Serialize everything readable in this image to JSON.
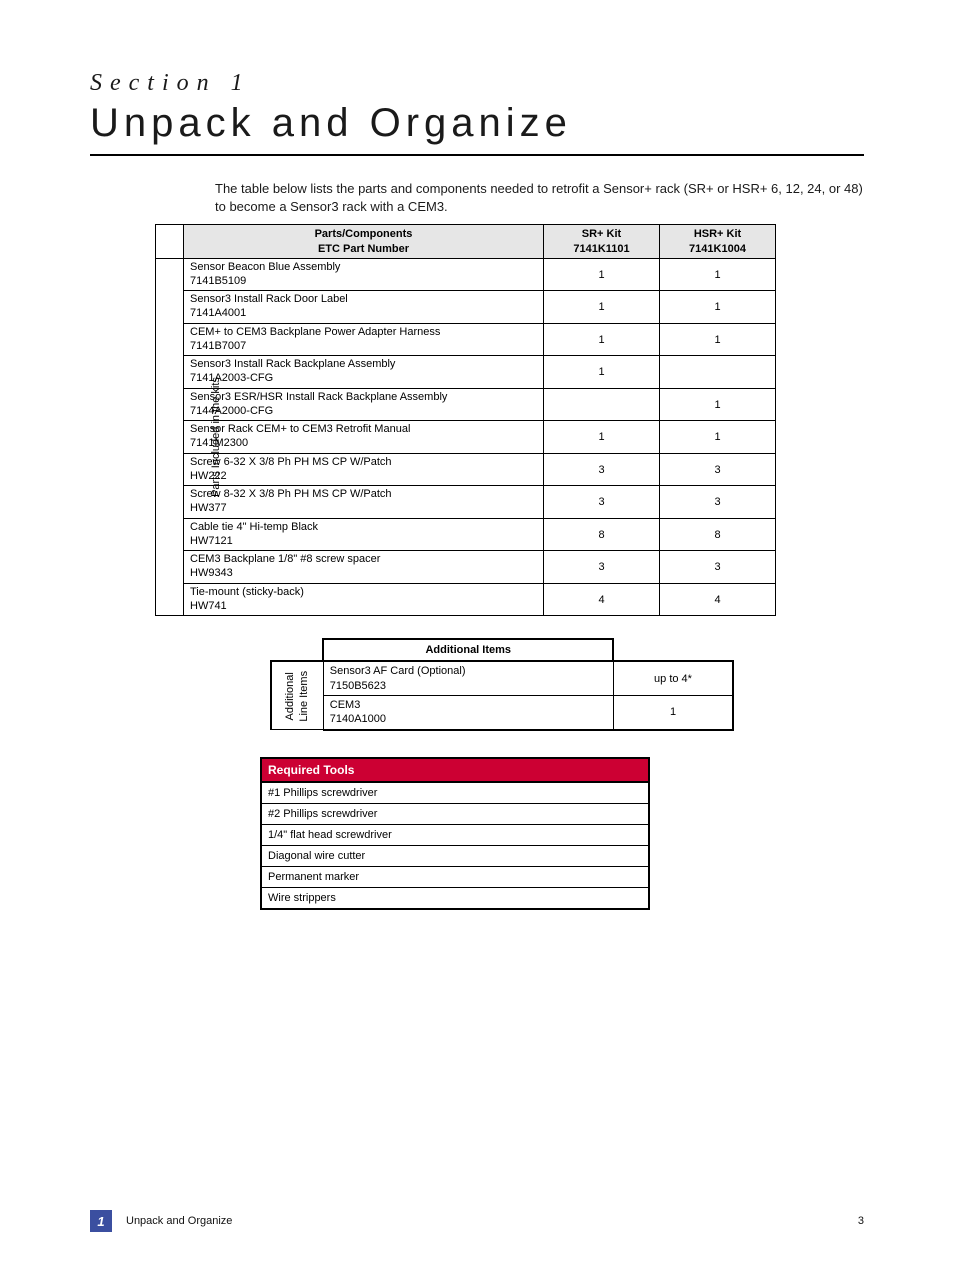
{
  "section": {
    "label": "Section 1",
    "title": "Unpack and Organize"
  },
  "intro": "The table below lists the parts and components needed to retrofit a Sensor+ rack (SR+ or HSR+ 6, 12, 24, or 48) to become a Sensor3 rack with a CEM3.",
  "parts": {
    "side_label": "Parts Included in the kits",
    "headers": {
      "desc_line1": "Parts/Components",
      "desc_line2": "ETC Part Number",
      "sr_line1": "SR+ Kit",
      "sr_line2": "7141K1101",
      "hsr_line1": "HSR+ Kit",
      "hsr_line2": "7141K1004"
    },
    "rows": [
      {
        "name": "Sensor Beacon Blue Assembly",
        "pn": "7141B5109",
        "sr": "1",
        "hsr": "1"
      },
      {
        "name": "Sensor3 Install Rack Door Label",
        "pn": "7141A4001",
        "sr": "1",
        "hsr": "1"
      },
      {
        "name": "CEM+ to CEM3 Backplane Power Adapter Harness",
        "pn": "7141B7007",
        "sr": "1",
        "hsr": "1"
      },
      {
        "name": "Sensor3 Install Rack Backplane Assembly",
        "pn": "7141A2003-CFG",
        "sr": "1",
        "hsr": ""
      },
      {
        "name": "Sensor3 ESR/HSR Install Rack Backplane Assembly",
        "pn": "7144A2000-CFG",
        "sr": "",
        "hsr": "1"
      },
      {
        "name": "Sensor Rack CEM+ to CEM3 Retrofit Manual",
        "pn": "7141M2300",
        "sr": "1",
        "hsr": "1"
      },
      {
        "name": "Screw 6-32 X 3/8 Ph PH MS CP W/Patch",
        "pn": "HW222",
        "sr": "3",
        "hsr": "3"
      },
      {
        "name": "Screw 8-32 X 3/8 Ph PH MS CP W/Patch",
        "pn": "HW377",
        "sr": "3",
        "hsr": "3"
      },
      {
        "name": "Cable tie 4\" Hi-temp Black",
        "pn": "HW7121",
        "sr": "8",
        "hsr": "8"
      },
      {
        "name": "CEM3 Backplane 1/8\" #8 screw spacer",
        "pn": "HW9343",
        "sr": "3",
        "hsr": "3"
      },
      {
        "name": "Tie-mount (sticky-back)",
        "pn": "HW741",
        "sr": "4",
        "hsr": "4"
      }
    ]
  },
  "additional": {
    "header": "Additional Items",
    "side_label_line1": "Additional",
    "side_label_line2": "Line Items",
    "rows": [
      {
        "name": "Sensor3 AF Card (Optional)",
        "pn": "7150B5623",
        "val": "up to 4*"
      },
      {
        "name": "CEM3",
        "pn": "7140A1000",
        "val": "1"
      }
    ]
  },
  "tools": {
    "header": "Required Tools",
    "header_bg": "#cc0033",
    "header_fg": "#ffffff",
    "items": [
      "#1 Phillips screwdriver",
      "#2 Phillips screwdriver",
      "1/4\" flat head screwdriver",
      "Diagonal wire cutter",
      "Permanent marker",
      "Wire strippers"
    ]
  },
  "footer": {
    "glyph": "1",
    "glyph_bg": "#3b4fa0",
    "title": "Unpack and Organize",
    "page": "3"
  }
}
